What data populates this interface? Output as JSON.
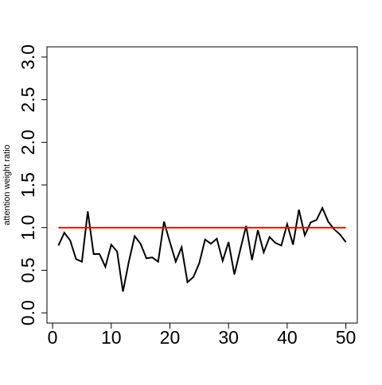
{
  "chart_data": {
    "type": "line",
    "ylabel": "attention weight ratio",
    "x": [
      1,
      2,
      3,
      4,
      5,
      6,
      7,
      8,
      9,
      10,
      11,
      12,
      13,
      14,
      15,
      16,
      17,
      18,
      19,
      20,
      21,
      22,
      23,
      24,
      25,
      26,
      27,
      28,
      29,
      30,
      31,
      32,
      33,
      34,
      35,
      36,
      37,
      38,
      39,
      40,
      41,
      42,
      43,
      44,
      45,
      46,
      47,
      48,
      49,
      50
    ],
    "series": [
      {
        "color": "#000000",
        "values": [
          0.79,
          0.94,
          0.85,
          0.63,
          0.6,
          1.19,
          0.69,
          0.69,
          0.54,
          0.8,
          0.72,
          0.25,
          0.6,
          0.9,
          0.81,
          0.64,
          0.65,
          0.6,
          1.07,
          0.83,
          0.6,
          0.77,
          0.36,
          0.42,
          0.58,
          0.86,
          0.81,
          0.87,
          0.61,
          0.83,
          0.45,
          0.74,
          1.02,
          0.62,
          0.97,
          0.71,
          0.89,
          0.82,
          0.79,
          1.04,
          0.8,
          1.21,
          0.91,
          1.06,
          1.09,
          1.23,
          1.07,
          0.98,
          0.92,
          0.83
        ]
      }
    ],
    "reference_line": {
      "y": 1,
      "x": [
        1,
        50
      ],
      "color": "#ff0000"
    },
    "xlim": [
      -0.96,
      51.96
    ],
    "ylim": [
      -0.12,
      3.12
    ],
    "xticks": [
      0,
      10,
      20,
      30,
      40,
      50
    ],
    "yticks": [
      {
        "value": 0,
        "label": "0.0"
      },
      0.5,
      {
        "value": 1,
        "label": "1.0"
      },
      1.5,
      {
        "value": 2,
        "label": "2.0"
      },
      2.5,
      {
        "value": 3,
        "label": "3.0"
      }
    ]
  }
}
